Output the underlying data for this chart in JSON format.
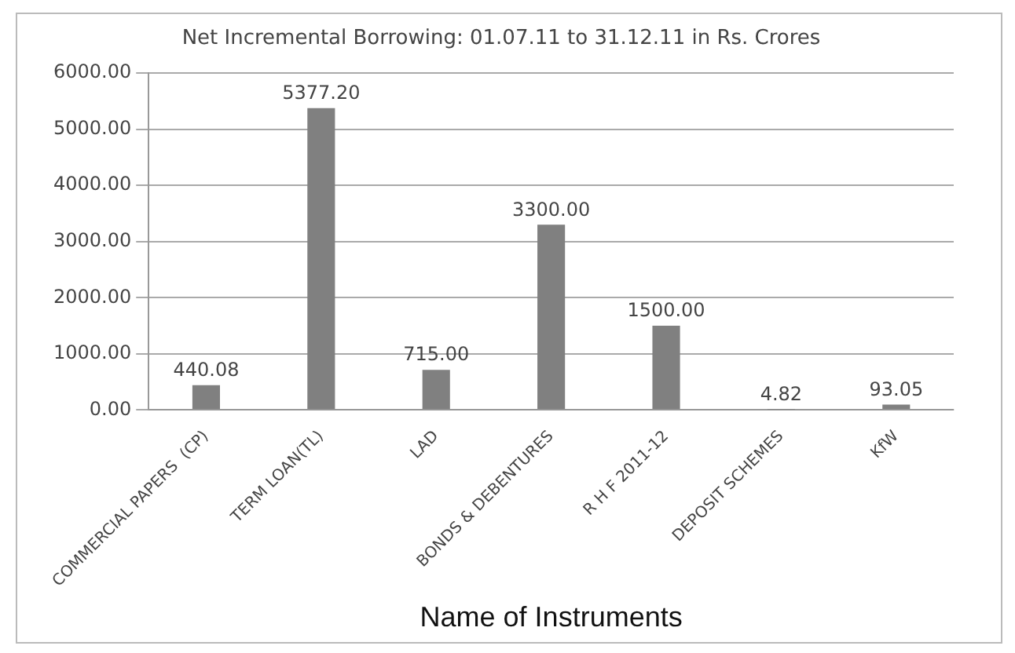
{
  "chart_data": {
    "type": "bar",
    "title": "Net Incremental Borrowing: 01.07.11 to 31.12.11 in Rs. Crores",
    "xlabel": "Name of Instruments",
    "categories": [
      "COMMERCIAL PAPERS  (CP)",
      "TERM LOAN(TL)",
      "LAD",
      "BONDS & DEBENTURES",
      "R H F 2011-12",
      "DEPOSIT SCHEMES",
      "KfW"
    ],
    "values": [
      440.08,
      5377.2,
      715.0,
      3300.0,
      1500.0,
      4.82,
      93.05
    ],
    "value_labels": [
      "440.08",
      "5377.20",
      "715.00",
      "3300.00",
      "1500.00",
      "4.82",
      "93.05"
    ],
    "color": "#808080",
    "ylim": [
      0,
      6000
    ],
    "yticks": [
      {
        "value": 0,
        "label": "0.00"
      },
      {
        "value": 1000,
        "label": "1000.00"
      },
      {
        "value": 2000,
        "label": "2000.00"
      },
      {
        "value": 3000,
        "label": "3000.00"
      },
      {
        "value": 4000,
        "label": "4000.00"
      },
      {
        "value": 5000,
        "label": "5000.00"
      },
      {
        "value": 6000,
        "label": "6000.00"
      }
    ],
    "grid": "y"
  }
}
